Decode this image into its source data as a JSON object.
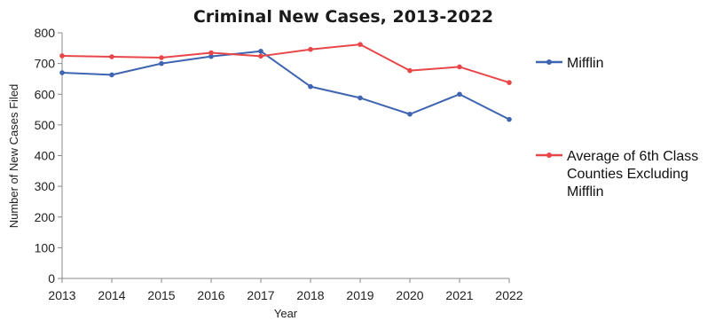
{
  "chart_data": {
    "type": "line",
    "title": "Criminal New Cases, 2013-2022",
    "xlabel": "Year",
    "ylabel": "Number of New Cases Filed",
    "categories": [
      "2013",
      "2014",
      "2015",
      "2016",
      "2017",
      "2018",
      "2019",
      "2020",
      "2021",
      "2022"
    ],
    "ylim": [
      0,
      800
    ],
    "yticks": [
      "0",
      "100",
      "200",
      "300",
      "400",
      "500",
      "600",
      "700",
      "800"
    ],
    "grid": false,
    "legend_position": "right",
    "series": [
      {
        "name": "Mifflin",
        "color": "#3f64b0",
        "values": [
          670,
          663,
          700,
          723,
          740,
          625,
          588,
          535,
          600,
          518
        ]
      },
      {
        "name": "Average of 6th Class Counties Excluding Mifflin",
        "legend_lines": [
          "Average of 6th Class",
          "Counties Excluding",
          "Mifflin"
        ],
        "color": "#e8474a",
        "values": [
          725,
          722,
          719,
          735,
          724,
          746,
          762,
          677,
          689,
          638
        ]
      }
    ]
  }
}
